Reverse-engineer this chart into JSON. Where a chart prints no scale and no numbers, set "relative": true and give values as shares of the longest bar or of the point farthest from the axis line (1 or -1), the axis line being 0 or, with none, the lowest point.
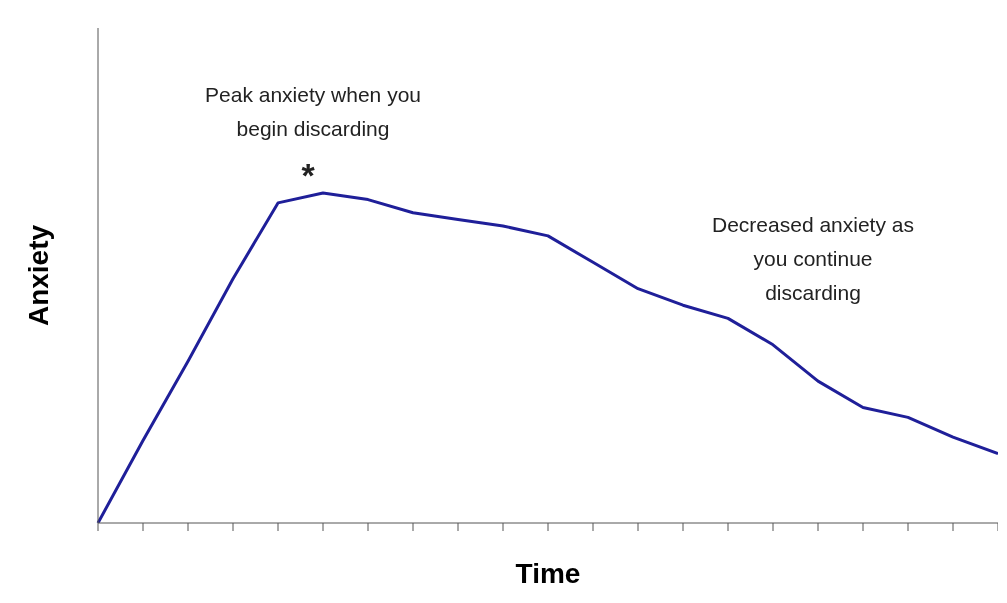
{
  "chart_data": {
    "type": "line",
    "relative": true,
    "xlabel": "Time",
    "ylabel": "Anxiety",
    "categories": [
      null,
      null,
      null,
      null,
      null,
      null,
      null,
      null,
      null,
      null,
      null,
      null,
      null,
      null,
      null,
      null,
      null,
      null,
      null,
      null,
      null
    ],
    "series": [
      {
        "color": "#1f1f99",
        "values": [
          0,
          0.25,
          0.49,
          0.74,
          0.97,
          1,
          0.98,
          0.94,
          0.92,
          0.9,
          0.87,
          0.79,
          0.71,
          0.66,
          0.62,
          0.54,
          0.43,
          0.35,
          0.32,
          0.26,
          0.21
        ]
      }
    ],
    "annotations": [
      "Peak anxiety when you begin discarding",
      "*",
      "Decreased anxiety as you continue discarding"
    ],
    "marker": "none",
    "line_style": "solid"
  }
}
